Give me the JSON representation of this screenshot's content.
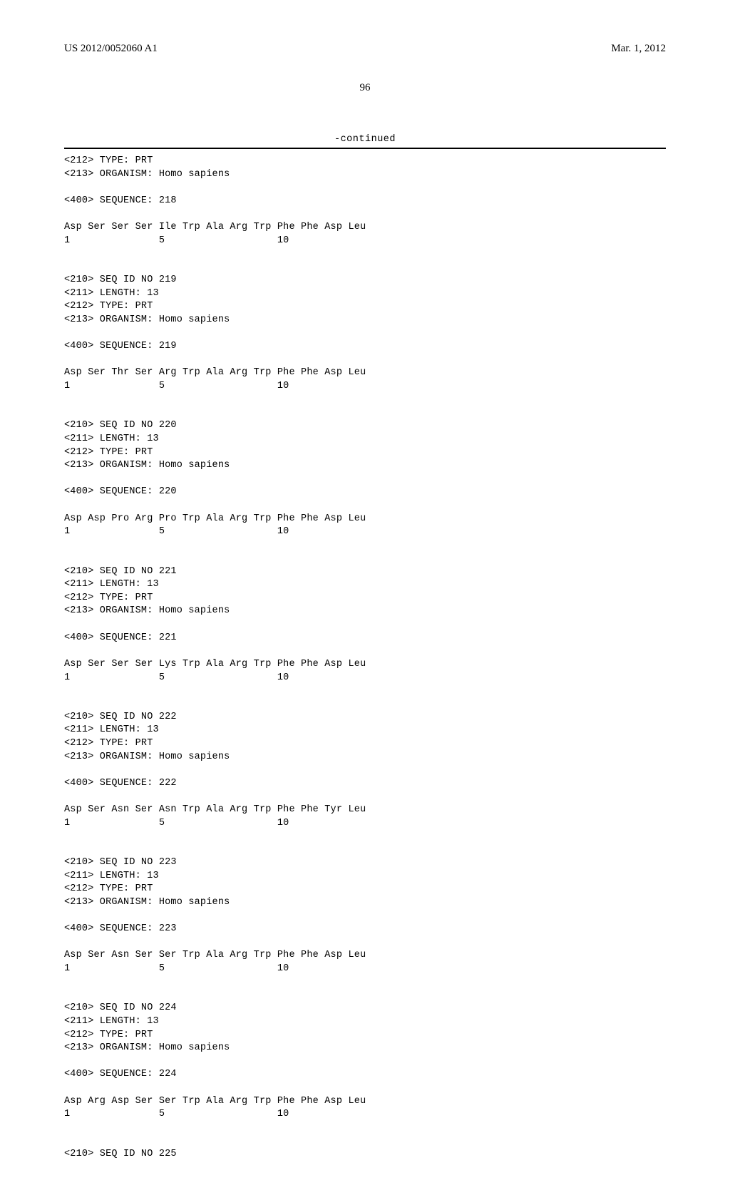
{
  "header": {
    "left": "US 2012/0052060 A1",
    "right": "Mar. 1, 2012"
  },
  "page_number": "96",
  "continued_label": "-continued",
  "font": {
    "header_family": "Times New Roman",
    "mono_family": "Courier New",
    "header_size_pt": 11,
    "mono_size_pt": 10
  },
  "colors": {
    "text": "#000000",
    "background": "#ffffff",
    "rule": "#000000"
  },
  "blocks": [
    {
      "meta": [
        "<212> TYPE: PRT",
        "<213> ORGANISM: Homo sapiens"
      ],
      "seq_label": "<400> SEQUENCE: 218",
      "seq_line": "Asp Ser Ser Ser Ile Trp Ala Arg Trp Phe Phe Asp Leu",
      "index_line": "1               5                   10"
    },
    {
      "meta": [
        "<210> SEQ ID NO 219",
        "<211> LENGTH: 13",
        "<212> TYPE: PRT",
        "<213> ORGANISM: Homo sapiens"
      ],
      "seq_label": "<400> SEQUENCE: 219",
      "seq_line": "Asp Ser Thr Ser Arg Trp Ala Arg Trp Phe Phe Asp Leu",
      "index_line": "1               5                   10"
    },
    {
      "meta": [
        "<210> SEQ ID NO 220",
        "<211> LENGTH: 13",
        "<212> TYPE: PRT",
        "<213> ORGANISM: Homo sapiens"
      ],
      "seq_label": "<400> SEQUENCE: 220",
      "seq_line": "Asp Asp Pro Arg Pro Trp Ala Arg Trp Phe Phe Asp Leu",
      "index_line": "1               5                   10"
    },
    {
      "meta": [
        "<210> SEQ ID NO 221",
        "<211> LENGTH: 13",
        "<212> TYPE: PRT",
        "<213> ORGANISM: Homo sapiens"
      ],
      "seq_label": "<400> SEQUENCE: 221",
      "seq_line": "Asp Ser Ser Ser Lys Trp Ala Arg Trp Phe Phe Asp Leu",
      "index_line": "1               5                   10"
    },
    {
      "meta": [
        "<210> SEQ ID NO 222",
        "<211> LENGTH: 13",
        "<212> TYPE: PRT",
        "<213> ORGANISM: Homo sapiens"
      ],
      "seq_label": "<400> SEQUENCE: 222",
      "seq_line": "Asp Ser Asn Ser Asn Trp Ala Arg Trp Phe Phe Tyr Leu",
      "index_line": "1               5                   10"
    },
    {
      "meta": [
        "<210> SEQ ID NO 223",
        "<211> LENGTH: 13",
        "<212> TYPE: PRT",
        "<213> ORGANISM: Homo sapiens"
      ],
      "seq_label": "<400> SEQUENCE: 223",
      "seq_line": "Asp Ser Asn Ser Ser Trp Ala Arg Trp Phe Phe Asp Leu",
      "index_line": "1               5                   10"
    },
    {
      "meta": [
        "<210> SEQ ID NO 224",
        "<211> LENGTH: 13",
        "<212> TYPE: PRT",
        "<213> ORGANISM: Homo sapiens"
      ],
      "seq_label": "<400> SEQUENCE: 224",
      "seq_line": "Asp Arg Asp Ser Ser Trp Ala Arg Trp Phe Phe Asp Leu",
      "index_line": "1               5                   10"
    },
    {
      "meta": [
        "<210> SEQ ID NO 225"
      ]
    }
  ]
}
